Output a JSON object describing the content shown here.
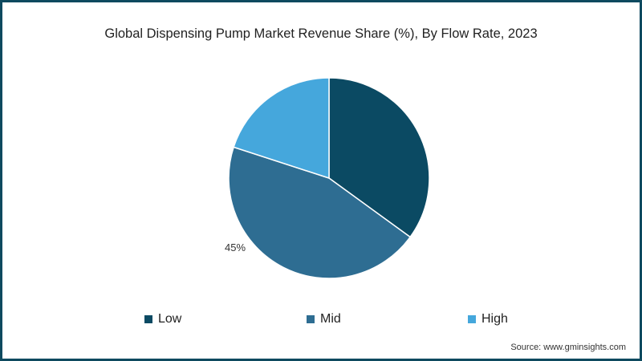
{
  "chart_data": {
    "type": "pie",
    "title": "Global Dispensing Pump Market Revenue Share (%), By Flow Rate, 2023",
    "categories": [
      "Low",
      "Mid",
      "High"
    ],
    "values": [
      35,
      45,
      20
    ],
    "colors": [
      "#0b4a63",
      "#2e6d92",
      "#45a7dc"
    ],
    "data_labels": [
      {
        "category": "Mid",
        "text": "45%"
      }
    ],
    "legend_position": "bottom",
    "start_angle": "12 o'clock",
    "direction": "clockwise"
  },
  "title": "Global Dispensing Pump Market Revenue Share (%), By Flow Rate, 2023",
  "legend": {
    "items": [
      {
        "label": "Low",
        "color": "#0b4a63"
      },
      {
        "label": "Mid",
        "color": "#2e6d92"
      },
      {
        "label": "High",
        "color": "#45a7dc"
      }
    ]
  },
  "labels": {
    "mid_pct": "45%"
  },
  "source": "Source: www.gminsights.com",
  "border_color": "#0e4a5f"
}
